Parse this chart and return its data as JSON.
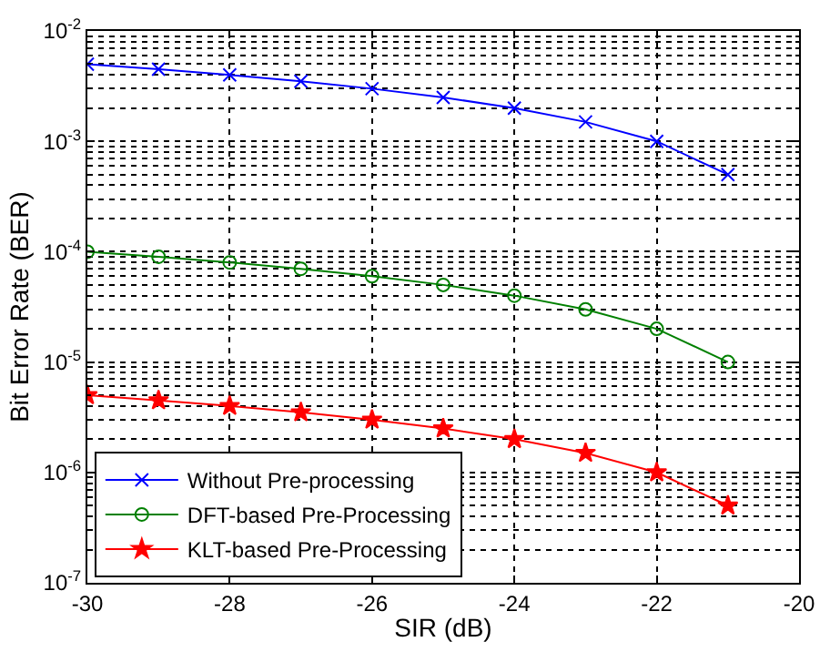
{
  "chart_data": {
    "type": "line",
    "xlabel": "SIR (dB)",
    "ylabel": "Bit Error Rate (BER)",
    "log": "y",
    "grid": true,
    "legend": "bottom left",
    "x": [
      -30,
      -29,
      -28,
      -27,
      -26,
      -25,
      -24,
      -23,
      -22,
      -21
    ],
    "xlim": [
      -30,
      -20
    ],
    "xticks": [
      -30,
      -28,
      -26,
      -24,
      -22,
      -20
    ],
    "ylim": [
      1e-07,
      0.01
    ],
    "yticks": [
      {
        "value": 1e-07,
        "label": "10$^{-7}$"
      },
      {
        "value": 1e-06,
        "label": "10$^{-6}$"
      },
      {
        "value": 1e-05,
        "label": "10$^{-5}$"
      },
      {
        "value": 0.0001,
        "label": "10$^{-4}$"
      },
      {
        "value": 0.001,
        "label": "10$^{-3}$"
      },
      {
        "value": 0.01,
        "label": "10$^{-2}$"
      }
    ],
    "series": [
      {
        "name": "Without Pre-processing",
        "color": "#0000ff",
        "marker": "cross",
        "values": [
          0.005,
          0.0045,
          0.004,
          0.0035,
          0.003,
          0.0025,
          0.002,
          0.0015,
          0.001,
          0.0005
        ]
      },
      {
        "name": "DFT-based Pre-Processing",
        "color": "#008000",
        "marker": "circle",
        "values": [
          0.0001,
          9e-05,
          8e-05,
          7e-05,
          6e-05,
          5e-05,
          4e-05,
          3e-05,
          2e-05,
          1e-05
        ]
      },
      {
        "name": "KLT-based Pre-Processing",
        "color": "#ff0000",
        "marker": "star",
        "values": [
          5e-06,
          4.5e-06,
          4e-06,
          3.5e-06,
          3e-06,
          2.5e-06,
          2e-06,
          1.5e-06,
          1e-06,
          5e-07
        ]
      }
    ]
  }
}
